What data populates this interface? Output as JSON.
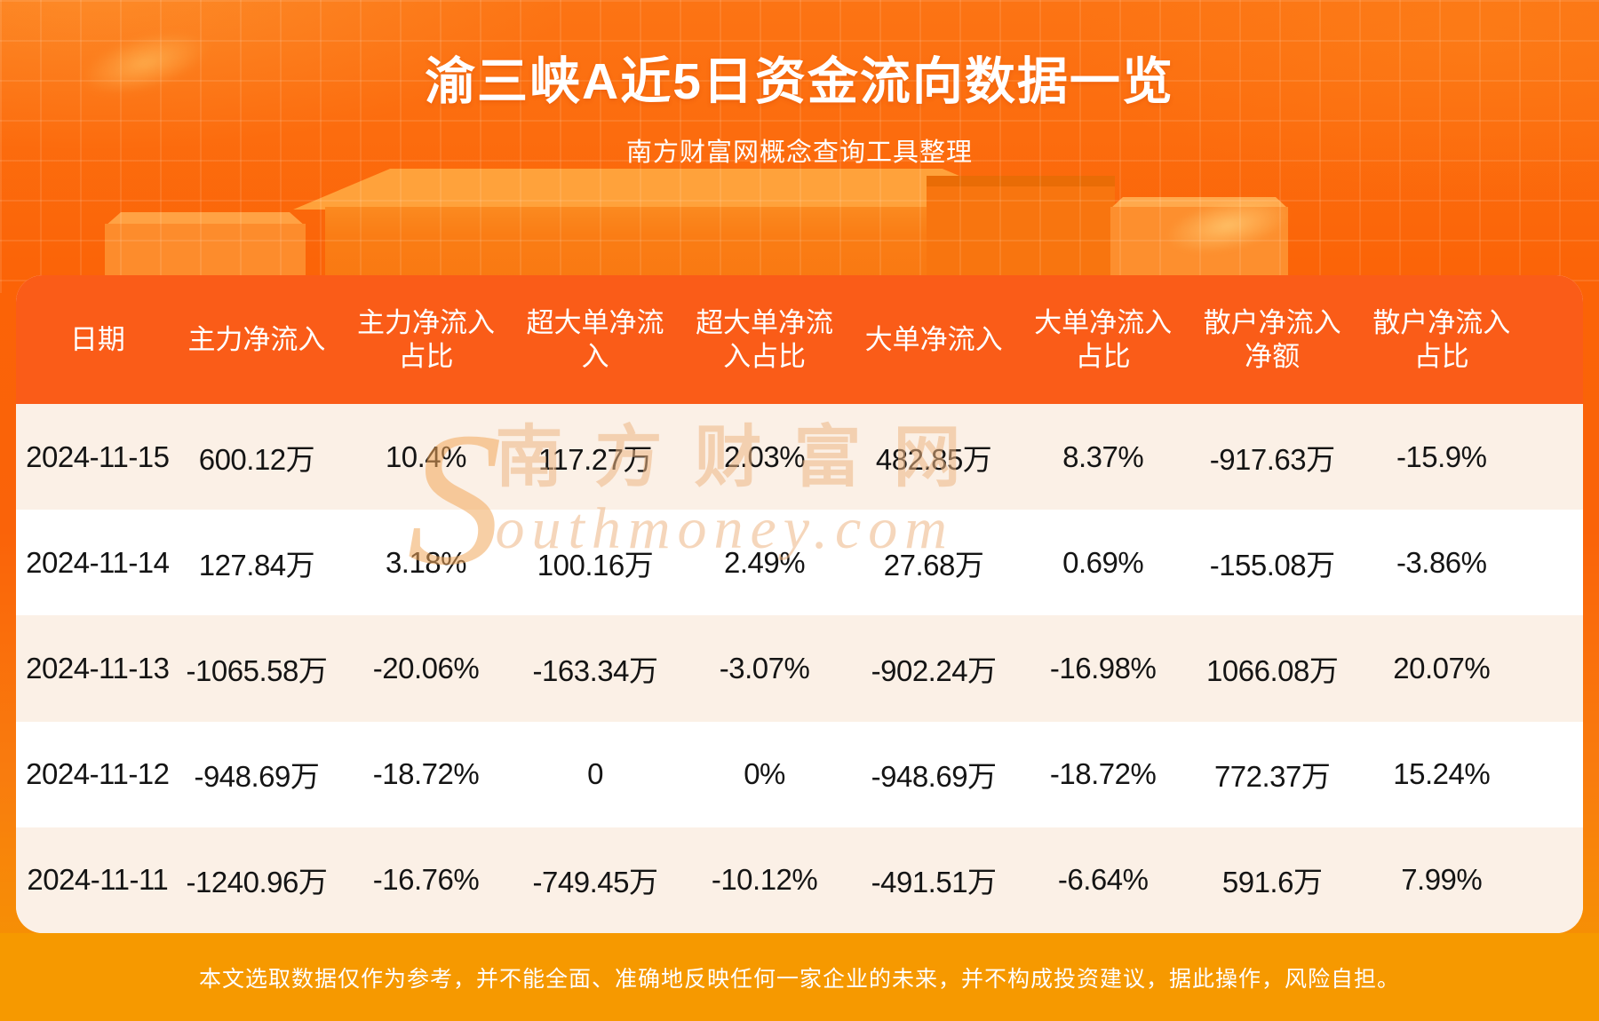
{
  "title": "渝三峡A近5日资金流向数据一览",
  "subtitle": "南方财富网概念查询工具整理",
  "watermark": {
    "s": "S",
    "line1": "南方财富网",
    "line2": "outhmoney.com"
  },
  "table": {
    "columns": [
      {
        "id": "date",
        "label_lines": [
          "日期"
        ]
      },
      {
        "id": "main-net-inflow",
        "label_lines": [
          "主力净流入"
        ]
      },
      {
        "id": "main-net-inflow-pct",
        "label_lines": [
          "主力净流入",
          "占比"
        ]
      },
      {
        "id": "super-large-net-inflow",
        "label_lines": [
          "超大单净流",
          "入"
        ]
      },
      {
        "id": "super-large-net-inflow-pct",
        "label_lines": [
          "超大单净流",
          "入占比"
        ]
      },
      {
        "id": "large-net-inflow",
        "label_lines": [
          "大单净流入"
        ]
      },
      {
        "id": "large-net-inflow-pct",
        "label_lines": [
          "大单净流入",
          "占比"
        ]
      },
      {
        "id": "retail-net-inflow-amount",
        "label_lines": [
          "散户净流入",
          "净额"
        ]
      },
      {
        "id": "retail-net-inflow-pct",
        "label_lines": [
          "散户净流入",
          "占比"
        ]
      }
    ]
  },
  "chart_data": {
    "type": "table",
    "title": "渝三峡A近5日资金流向数据一览",
    "columns": [
      "日期",
      "主力净流入",
      "主力净流入占比",
      "超大单净流入",
      "超大单净流入占比",
      "大单净流入",
      "大单净流入占比",
      "散户净流入净额",
      "散户净流入占比"
    ],
    "rows": [
      [
        "2024-11-15",
        "600.12万",
        "10.4%",
        "117.27万",
        "2.03%",
        "482.85万",
        "8.37%",
        "-917.63万",
        "-15.9%"
      ],
      [
        "2024-11-14",
        "127.84万",
        "3.18%",
        "100.16万",
        "2.49%",
        "27.68万",
        "0.69%",
        "-155.08万",
        "-3.86%"
      ],
      [
        "2024-11-13",
        "-1065.58万",
        "-20.06%",
        "-163.34万",
        "-3.07%",
        "-902.24万",
        "-16.98%",
        "1066.08万",
        "20.07%"
      ],
      [
        "2024-11-12",
        "-948.69万",
        "-18.72%",
        "0",
        "0%",
        "-948.69万",
        "-18.72%",
        "772.37万",
        "15.24%"
      ],
      [
        "2024-11-11",
        "-1240.96万",
        "-16.76%",
        "-749.45万",
        "-10.12%",
        "-491.51万",
        "-6.64%",
        "591.6万",
        "7.99%"
      ]
    ]
  },
  "disclaimer": "本文选取数据仅作为参考，并不能全面、准确地反映任何一家企业的未来，并不构成投资建议，据此操作，风险自担。",
  "colors": {
    "header_orange": "#fa5c18",
    "row_stripe_cream": "#fbf0e6",
    "row_white": "#ffffff",
    "footer_amber": "#f69900",
    "background_orange": "#fb6307",
    "text_dark": "#141414",
    "text_white": "#ffffff"
  }
}
